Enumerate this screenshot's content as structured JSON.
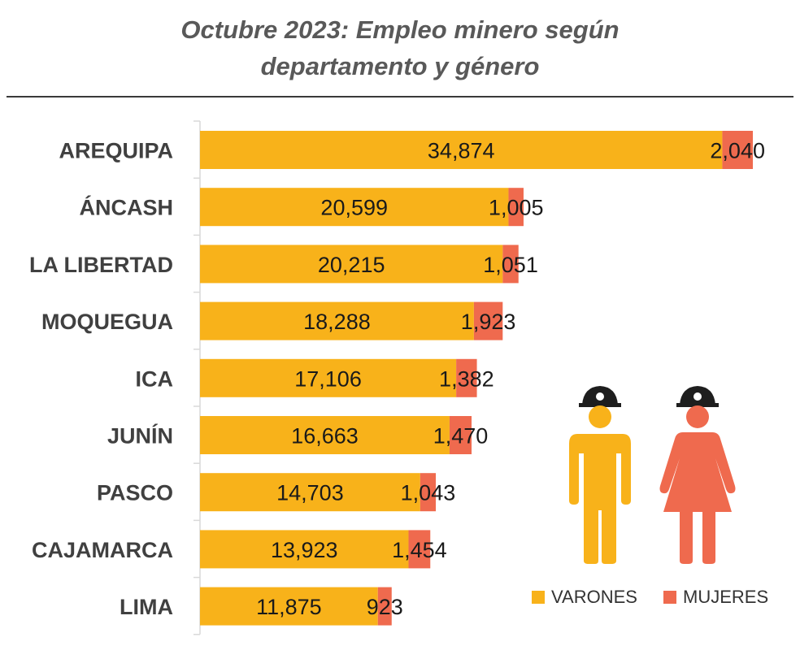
{
  "title_line1": "Octubre 2023: Empleo minero según",
  "title_line2": "departamento y género",
  "colors": {
    "varones": "#F8B21A",
    "mujeres": "#EF6A4E",
    "helmet": "#1e1e1e"
  },
  "legend": {
    "varones": "VARONES",
    "mujeres": "MUJERES"
  },
  "icons": {
    "man": "male-miner-icon",
    "woman": "female-miner-icon"
  },
  "chart_data": {
    "type": "bar",
    "orientation": "horizontal",
    "stacked": true,
    "title": "Octubre 2023: Empleo minero según departamento y género",
    "categories": [
      "AREQUIPA",
      "ÁNCASH",
      "LA LIBERTAD",
      "MOQUEGUA",
      "ICA",
      "JUNÍN",
      "PASCO",
      "CAJAMARCA",
      "LIMA"
    ],
    "series": [
      {
        "name": "VARONES",
        "values": [
          34874,
          20599,
          20215,
          18288,
          17106,
          16663,
          14703,
          13923,
          11875
        ]
      },
      {
        "name": "MUJERES",
        "values": [
          2040,
          1005,
          1051,
          1923,
          1382,
          1470,
          1043,
          1454,
          923
        ]
      }
    ],
    "labels_varones": [
      "34,874",
      "20,599",
      "20,215",
      "18,288",
      "17,106",
      "16,663",
      "14,703",
      "13,923",
      "11,875"
    ],
    "labels_mujeres": [
      "2,040",
      "1,005",
      "1,051",
      "1,923",
      "1,382",
      "1,470",
      "1,043",
      "1,454",
      "923"
    ],
    "xlim": [
      0,
      36914
    ],
    "legend_position": "bottom-right"
  }
}
